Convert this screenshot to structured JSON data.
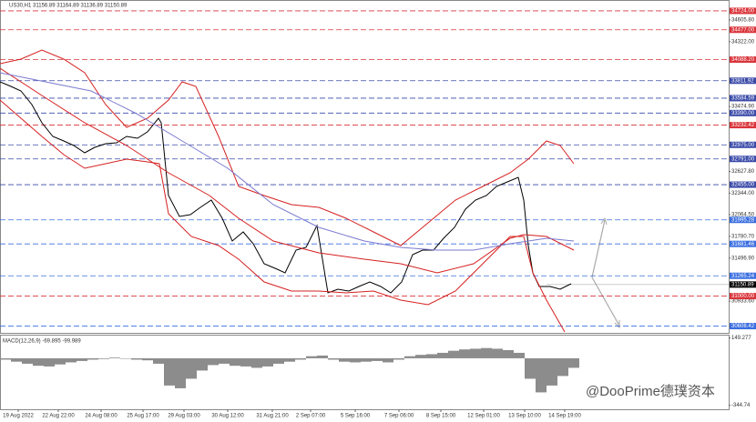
{
  "chart_data": [
    {
      "type": "line",
      "title": "US30,H1  31156.89 31164.89 31136.89 31150.89",
      "xlim": [
        0,
        800
      ],
      "xticks": [
        {
          "value": 20,
          "label": "19 Aug 2022"
        },
        {
          "value": 64,
          "label": "22 Aug 22:00"
        },
        {
          "value": 111,
          "label": "24 Aug 08:00"
        },
        {
          "value": 157,
          "label": "25 Aug 17:00"
        },
        {
          "value": 202,
          "label": "29 Aug 03:00"
        },
        {
          "value": 250,
          "label": "30 Aug 12:00"
        },
        {
          "value": 299,
          "label": "31 Aug 21:00"
        },
        {
          "value": 341,
          "label": "2 Sep 07:00"
        },
        {
          "value": 390,
          "label": "5 Sep 16:00"
        },
        {
          "value": 438,
          "label": "7 Sep 06:00"
        },
        {
          "value": 484,
          "label": "8 Sep 15:00"
        },
        {
          "value": 531,
          "label": "12 Sep 01:00"
        },
        {
          "value": 576,
          "label": "13 Sep 10:00"
        },
        {
          "value": 620,
          "label": "14 Sep 19:00"
        }
      ],
      "ylim": [
        30520,
        34866
      ],
      "yticks": [
        {
          "value": 34605.8,
          "label": "34605.80"
        },
        {
          "value": 34322,
          "label": "34322.00"
        },
        {
          "value": 33474.9,
          "label": "33474.90"
        },
        {
          "value": 32627.8,
          "label": "32627.80"
        },
        {
          "value": 32344,
          "label": "32344.00"
        },
        {
          "value": 32064.5,
          "label": "32064.50"
        },
        {
          "value": 31780.7,
          "label": "31780.70"
        },
        {
          "value": 31496.9,
          "label": "31496.90"
        },
        {
          "value": 30933.6,
          "label": "30933.60"
        }
      ],
      "levels": [
        {
          "value": 34724,
          "label": "34724.00",
          "color": "#d9343a"
        },
        {
          "value": 34477,
          "label": "34477.00",
          "color": "#d9343a"
        },
        {
          "value": 34088.2,
          "label": "34088.20",
          "color": "#d9343a"
        },
        {
          "value": 33811.92,
          "label": "33811.92",
          "color": "#3a4aa8"
        },
        {
          "value": 33584.59,
          "label": "33584.59",
          "color": "#3a4aa8"
        },
        {
          "value": 33390,
          "label": "33390.00",
          "color": "#3a4aa8"
        },
        {
          "value": 33232.42,
          "label": "33232.42",
          "color": "#d9343a"
        },
        {
          "value": 32975,
          "label": "32975.00",
          "color": "#3a4aa8"
        },
        {
          "value": 32791,
          "label": "32791.00",
          "color": "#3a4aa8"
        },
        {
          "value": 32455,
          "label": "32455.00",
          "color": "#3a4aa8"
        },
        {
          "value": 31995.28,
          "label": "31995.28",
          "color": "#3a6ee0"
        },
        {
          "value": 31681.46,
          "label": "31681.46",
          "color": "#3a6ee0"
        },
        {
          "value": 31265.24,
          "label": "31265.24",
          "color": "#3a6ee0"
        },
        {
          "value": 31000,
          "label": "31000.00",
          "color": "#d9343a"
        },
        {
          "value": 30608.42,
          "label": "30608.42",
          "color": "#3a6ee0"
        }
      ],
      "last_price": 31150.89,
      "series": [
        {
          "color": "#000000",
          "x": [
            0,
            12,
            23,
            35,
            46,
            58,
            70,
            81,
            93,
            104,
            116,
            128,
            139,
            151,
            162,
            174,
            177,
            185,
            197,
            209,
            220,
            232,
            244,
            255,
            267,
            278,
            290,
            302,
            313,
            325,
            336,
            348,
            360,
            371,
            383,
            394,
            406,
            418,
            429,
            441,
            453,
            464,
            476,
            487,
            499,
            511,
            522,
            534,
            545,
            557,
            569,
            575,
            580,
            585,
            592,
            604,
            615,
            627
          ],
          "values": [
            33797,
            33738,
            33679,
            33501,
            33263,
            33085,
            33026,
            32966,
            32871,
            32942,
            32990,
            33002,
            33085,
            33061,
            33145,
            33322,
            33263,
            32313,
            32040,
            32064,
            32159,
            32254,
            32016,
            31719,
            31838,
            31684,
            31423,
            31363,
            31304,
            31601,
            31636,
            31921,
            31043,
            31090,
            31066,
            31126,
            31185,
            31126,
            31043,
            31185,
            31541,
            31601,
            31601,
            31755,
            31898,
            32135,
            32254,
            32313,
            32432,
            32491,
            32551,
            32254,
            31660,
            31304,
            31126,
            31126,
            31090,
            31161
          ]
        },
        {
          "color": "#d62020",
          "x": [
            0,
            23,
            46,
            70,
            93,
            116,
            139,
            162,
            185,
            200,
            215,
            240,
            262,
            290,
            320,
            350,
            380,
            410,
            440,
            470,
            500,
            530,
            560,
            580,
            600,
            615,
            630
          ],
          "values": [
            34035,
            34094,
            34213,
            34094,
            33916,
            33501,
            33204,
            33322,
            33560,
            33797,
            33738,
            33085,
            32432,
            32313,
            32194,
            32159,
            32016,
            31838,
            31660,
            31957,
            32254,
            32432,
            32610,
            32788,
            33026,
            32966,
            32729
          ]
        },
        {
          "color": "#d62020",
          "x": [
            0,
            23,
            46,
            70,
            93,
            116,
            139,
            162,
            175,
            185,
            210,
            240,
            262,
            290,
            320,
            350,
            380,
            410,
            440,
            470,
            500,
            530,
            560,
            575,
            585,
            600,
            620
          ],
          "values": [
            33560,
            33322,
            33085,
            32847,
            32669,
            32729,
            32788,
            32752,
            32729,
            32076,
            31779,
            31660,
            31482,
            31185,
            31066,
            31066,
            31043,
            31066,
            30948,
            30888,
            31066,
            31423,
            31779,
            31779,
            31304,
            30948,
            30532
          ]
        },
        {
          "color": "#d62020",
          "x": [
            0,
            46,
            93,
            139,
            185,
            230,
            262,
            300,
            350,
            400,
            440,
            480,
            520,
            560,
            575,
            600,
            630
          ],
          "values": [
            33975,
            33619,
            33263,
            32966,
            32610,
            32313,
            32016,
            31719,
            31565,
            31482,
            31423,
            31304,
            31423,
            31755,
            31803,
            31779,
            31601
          ]
        },
        {
          "color": "#7a7ad0",
          "x": [
            0,
            50,
            100,
            150,
            200,
            250,
            300,
            350,
            400,
            440,
            480,
            520,
            560,
            600,
            630
          ],
          "values": [
            33916,
            33797,
            33679,
            33382,
            33026,
            32669,
            32194,
            31897,
            31719,
            31636,
            31601,
            31601,
            31684,
            31755,
            31719
          ]
        }
      ]
    },
    {
      "type": "bar",
      "title": "MACD(12,26,9) -69.895 -99.989",
      "color": "#8c8c8c",
      "xlim": [
        0,
        800
      ],
      "ylim": [
        -374,
        173
      ],
      "yticks": [
        149.277,
        -344.74
      ],
      "x": [
        6,
        18,
        30,
        42,
        54,
        66,
        78,
        90,
        102,
        114,
        126,
        138,
        150,
        162,
        174,
        186,
        198,
        210,
        222,
        234,
        246,
        258,
        270,
        282,
        294,
        306,
        318,
        330,
        342,
        354,
        366,
        378,
        390,
        402,
        414,
        426,
        438,
        450,
        462,
        474,
        486,
        498,
        510,
        522,
        534,
        546,
        558,
        570,
        582,
        594,
        606,
        618,
        630
      ],
      "values": [
        -10,
        -25,
        -40,
        -55,
        -60,
        -45,
        -30,
        -20,
        -10,
        -5,
        5,
        0,
        -10,
        -15,
        -40,
        -200,
        -220,
        -150,
        -90,
        -50,
        -40,
        -55,
        -60,
        -70,
        -60,
        -40,
        -25,
        -10,
        15,
        20,
        -10,
        -25,
        -30,
        -25,
        -20,
        -30,
        -10,
        15,
        25,
        30,
        40,
        55,
        65,
        70,
        75,
        70,
        60,
        40,
        -150,
        -250,
        -200,
        -130,
        -70
      ]
    }
  ],
  "watermark": "@DooPrime德璞资本"
}
